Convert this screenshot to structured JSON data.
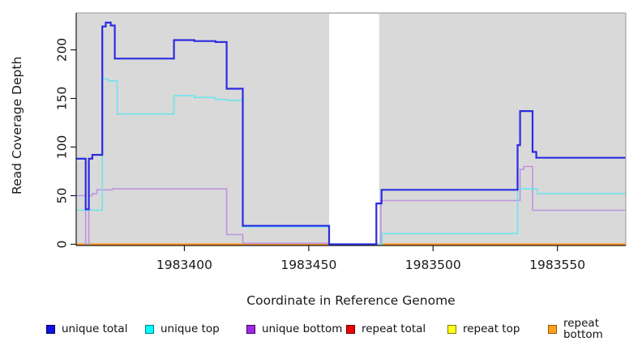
{
  "chart_data": {
    "type": "line",
    "step": "after",
    "title": "",
    "xlabel": "Coordinate in Reference Genome",
    "ylabel": "Read Coverage Depth",
    "xlim": [
      1983356.5,
      1983577.5
    ],
    "ylim": [
      0,
      238
    ],
    "x_ticks": [
      1983400,
      1983450,
      1983500,
      1983550
    ],
    "y_ticks": [
      0,
      50,
      100,
      150,
      200
    ],
    "grid": false,
    "plot_bg": "#D9D9D9",
    "plot_border_color": "#A6A6A6",
    "axis_color": "#1a1a1a",
    "gap_region": {
      "from": 1983458.2,
      "to": 1983478.3,
      "color": "#FFFFFF"
    },
    "legend_position": "bottom",
    "draw_order": [
      3,
      4,
      5,
      2,
      1,
      0
    ],
    "series": [
      {
        "name": "unique total",
        "color": "#2B2BE1",
        "legend_fill": "#1010E6",
        "legend_border": "#00004D",
        "points": [
          [
            1983356.5,
            88
          ],
          [
            1983360.3,
            36
          ],
          [
            1983361.6,
            88
          ],
          [
            1983363,
            92
          ],
          [
            1983367,
            224
          ],
          [
            1983368.4,
            228
          ],
          [
            1983370.4,
            225
          ],
          [
            1983372,
            191
          ],
          [
            1983395.8,
            210
          ],
          [
            1983404,
            209
          ],
          [
            1983412.5,
            208
          ],
          [
            1983417,
            160
          ],
          [
            1983423.5,
            19
          ],
          [
            1983458.2,
            0
          ],
          [
            1983477.2,
            42
          ],
          [
            1983479.3,
            56
          ],
          [
            1983534,
            102
          ],
          [
            1983535,
            137
          ],
          [
            1983540,
            95
          ],
          [
            1983541.5,
            89
          ],
          [
            1983577.5,
            89
          ]
        ]
      },
      {
        "name": "unique top",
        "color": "#6FE4EC",
        "legend_fill": "#00FDFF",
        "legend_border": "#007F86",
        "points": [
          [
            1983356.5,
            35
          ],
          [
            1983367,
            170
          ],
          [
            1983369.4,
            168
          ],
          [
            1983373,
            134
          ],
          [
            1983395.8,
            153
          ],
          [
            1983404,
            151
          ],
          [
            1983412.5,
            149
          ],
          [
            1983417,
            148
          ],
          [
            1983423.5,
            18
          ],
          [
            1983458.2,
            0
          ],
          [
            1983479.5,
            11
          ],
          [
            1983534,
            57
          ],
          [
            1983542,
            52
          ],
          [
            1983577.5,
            52
          ]
        ]
      },
      {
        "name": "unique bottom",
        "color": "#BE93DF",
        "legend_fill": "#A228E6",
        "legend_border": "#43005C",
        "points": [
          [
            1983356.5,
            50
          ],
          [
            1983360.3,
            0
          ],
          [
            1983361.6,
            50
          ],
          [
            1983363,
            52
          ],
          [
            1983364.8,
            56
          ],
          [
            1983371,
            57
          ],
          [
            1983417,
            10
          ],
          [
            1983423.5,
            1
          ],
          [
            1983458.2,
            0
          ],
          [
            1983479,
            45
          ],
          [
            1983535,
            77
          ],
          [
            1983536.5,
            80
          ],
          [
            1983540,
            35
          ],
          [
            1983577.5,
            35
          ]
        ]
      },
      {
        "name": "repeat total",
        "color": "#E02020",
        "legend_fill": "#F00000",
        "legend_border": "#600000",
        "points": [
          [
            1983356.5,
            0
          ],
          [
            1983577.5,
            0
          ]
        ]
      },
      {
        "name": "repeat top",
        "color": "#F0F020",
        "legend_fill": "#FFFF1A",
        "legend_border": "#7F7F00",
        "points": [
          [
            1983356.5,
            0
          ],
          [
            1983577.5,
            0
          ]
        ]
      },
      {
        "name": "repeat bottom",
        "color": "#FF9414",
        "legend_fill": "#FFA01E",
        "legend_border": "#8F5A00",
        "points": [
          [
            1983356.5,
            0
          ],
          [
            1983577.5,
            0
          ]
        ]
      }
    ]
  }
}
